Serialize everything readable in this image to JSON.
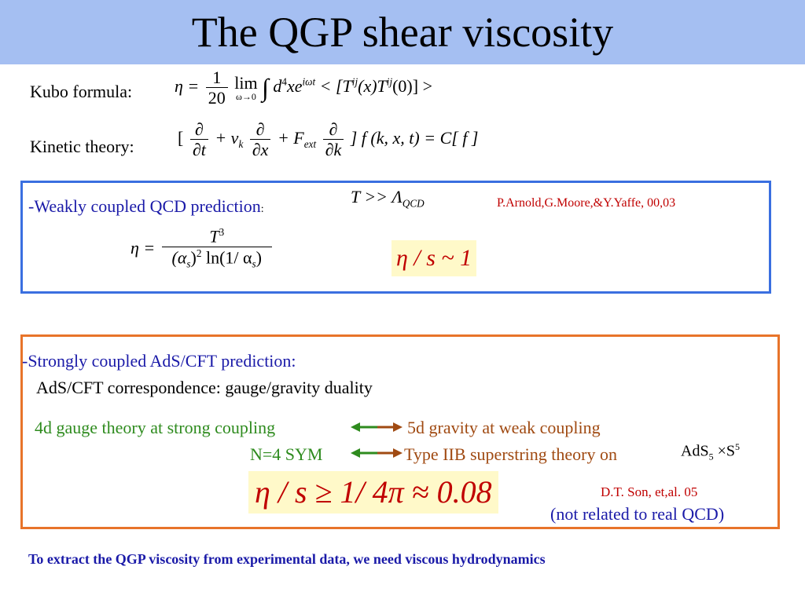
{
  "title": "The QGP shear viscosity",
  "kubo": {
    "label": "Kubo formula:",
    "eta": "η =",
    "frac_num": "1",
    "frac_den": "20",
    "lim": "lim",
    "lim_sub": "ω→0",
    "integral": "∫",
    "d4": "d",
    "d4_sup": "4",
    "x": "xe",
    "exp_sup": "iωt",
    "bracket_open": "< [T",
    "tij_sup": "ij",
    "mid": "(x)T",
    "tij2_sup": "ij",
    "end": "(0)] >"
  },
  "kinetic": {
    "label": "Kinetic theory:",
    "open": "[",
    "d1_num": "∂",
    "d1_den": "∂t",
    "plus_v": "+ v",
    "v_sub": "k",
    "d2_num": "∂",
    "d2_den": "∂x",
    "plus_f": "+ F",
    "f_sub": "ext",
    "d3_num": "∂",
    "d3_den": "∂k",
    "rest": "] f (k, x, t) = C[ f ]"
  },
  "weak": {
    "label": "-Weakly coupled QCD prediction",
    "colon": ":",
    "condition": "T >> Λ",
    "condition_sub": "QCD",
    "citation": "P.Arnold,G.Moore,&Y.Yaffe,  00,03",
    "eta": "η =",
    "num": "T",
    "num_sup": "3",
    "den_a": "(α",
    "den_a_sub": "s",
    "den_b": ")",
    "den_b_sup": "2",
    "den_c": " ln(1/ α",
    "den_c_sub": "s",
    "den_d": ")",
    "ratio": "η / s ~ 1"
  },
  "strong": {
    "label": "-Strongly coupled AdS/CFT prediction:",
    "correspondence": "AdS/CFT correspondence: gauge/gravity duality",
    "gauge": "4d gauge theory at strong coupling",
    "gravity": "5d gravity at weak coupling",
    "sym": "N=4 SYM",
    "string": "Type IIB superstring theory on",
    "ads": "AdS",
    "ads_sub": "5",
    "times": " ×S",
    "s_sup": "5",
    "bound": "η / s ≥ 1/ 4π ≈ 0.08",
    "citation": "D.T. Son, et,al. 05",
    "note": "(not  related to real QCD)"
  },
  "footer": "To extract the QGP viscosity from experimental data, we need viscous hydrodynamics",
  "colors": {
    "title_bg": "#a5bff2",
    "blue_box": "#3a6fe0",
    "orange_box": "#e8742a",
    "green": "#2e8b1e",
    "brown": "#a04a12",
    "citation_red": "#c00000",
    "footer_blue": "#1a1aa8",
    "highlight": "#fff9c9"
  }
}
